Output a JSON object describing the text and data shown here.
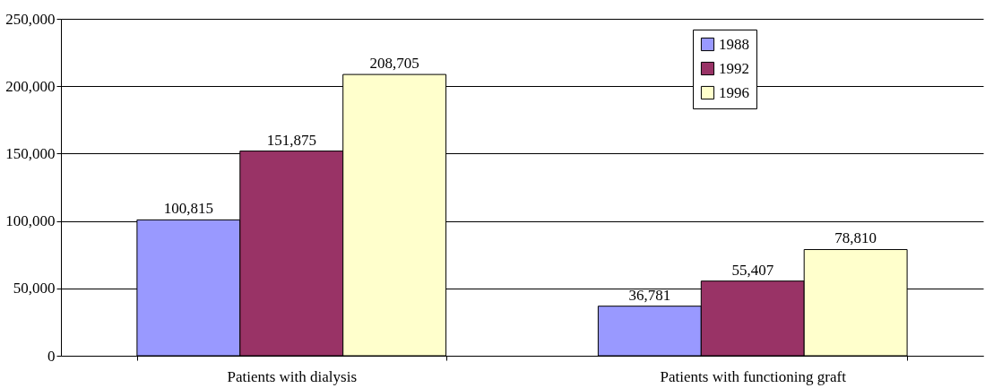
{
  "chart_data": {
    "type": "bar",
    "categories": [
      "Patients with dialysis",
      "Patients with functioning graft"
    ],
    "series": [
      {
        "name": "1988",
        "color": "#9999ff",
        "values": [
          100815,
          36781
        ],
        "value_labels": [
          "100,815",
          "36,781"
        ]
      },
      {
        "name": "1992",
        "color": "#993366",
        "values": [
          151875,
          55407
        ],
        "value_labels": [
          "151,875",
          "55,407"
        ]
      },
      {
        "name": "1996",
        "color": "#ffffcc",
        "values": [
          208705,
          78810
        ],
        "value_labels": [
          "208,705",
          "78,810"
        ]
      }
    ],
    "ylim": [
      0,
      250000
    ],
    "yticks": [
      0,
      {
        "value": 50000,
        "label": "50,000"
      },
      {
        "value": 100000,
        "label": "100,000"
      },
      {
        "value": 150000,
        "label": "150,000"
      },
      {
        "value": 200000,
        "label": "200,000"
      },
      {
        "value": 250000,
        "label": "250,000"
      }
    ],
    "grid": "y",
    "legend": "top right"
  }
}
